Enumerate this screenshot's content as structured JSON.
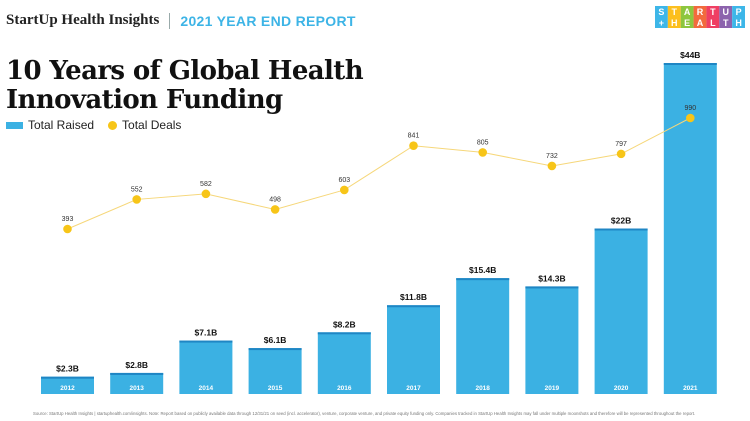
{
  "header": {
    "brand": "StartUp Health Insights",
    "separator": "|",
    "report": "2021 YEAR END REPORT"
  },
  "logo": {
    "top": "STARTUP",
    "bottom": "+HEALTH"
  },
  "title": {
    "line1": "10 Years of Global Health",
    "line2": "Innovation Funding"
  },
  "legend": {
    "raised": "Total Raised",
    "deals": "Total Deals"
  },
  "colors": {
    "bar": "#3bb1e3",
    "bar_top": "#1f86c4",
    "deal": "#f7c518",
    "logo_colors": [
      "#3db6e8",
      "#fcbf1e",
      "#8dc63f",
      "#f26a3d",
      "#ef3f63",
      "#8c63ad",
      "#3db6e8"
    ]
  },
  "chart_data": {
    "type": "bar",
    "title": "10 Years of Global Health Innovation Funding",
    "categories": [
      "2012",
      "2013",
      "2014",
      "2015",
      "2016",
      "2017",
      "2018",
      "2019",
      "2020",
      "2021"
    ],
    "series": [
      {
        "name": "Total Raised",
        "type": "bar",
        "unit": "$B",
        "values": [
          2.3,
          2.8,
          7.1,
          6.1,
          8.2,
          11.8,
          15.4,
          14.3,
          22,
          44
        ],
        "labels": [
          "$2.3B",
          "$2.8B",
          "$7.1B",
          "$6.1B",
          "$8.2B",
          "$11.8B",
          "$15.4B",
          "$14.3B",
          "$22B",
          "$44B"
        ]
      },
      {
        "name": "Total Deals",
        "type": "line",
        "values": [
          393,
          552,
          582,
          498,
          603,
          841,
          805,
          732,
          797,
          990
        ],
        "labels": [
          "393",
          "552",
          "582",
          "498",
          "603",
          "841",
          "805",
          "732",
          "797",
          "990"
        ]
      }
    ],
    "ylim_raised": [
      0,
      44
    ],
    "ylim_deals": [
      393,
      990
    ],
    "legend": "top-left",
    "grid": false
  },
  "footnote": "Source: StartUp Health Insights | startuphealth.com/insights. Note: Report based on publicly available data through 12/31/21 on seed (incl. accelerator), venture, corporate venture, and private equity funding only. Companies tracked in StartUp Health Insights may fall under multiple moonshots and therefore will be represented throughout the report."
}
